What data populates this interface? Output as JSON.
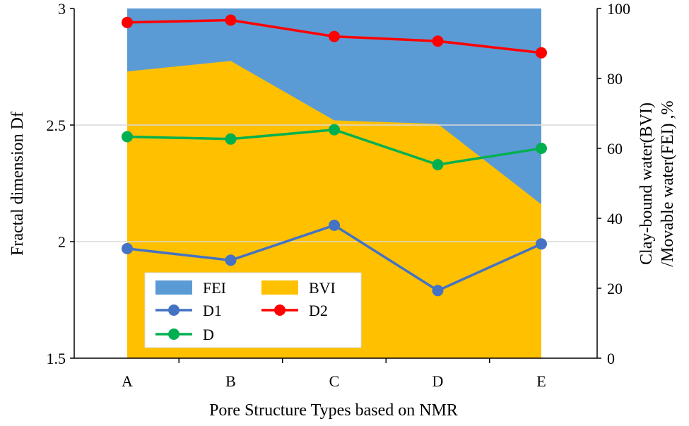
{
  "chart_data": {
    "type": "line",
    "categories": [
      "A",
      "B",
      "C",
      "D",
      "E"
    ],
    "xlabel": "Pore Structure Types based on NMR",
    "ylabel": "Fractal dimension Df",
    "ylabel_right_line1": "Clay-bound water(BVI)",
    "ylabel_right_line2": "/Movable water(FEI) ,%",
    "ylim": [
      1.5,
      3
    ],
    "y_ticks": [
      "1.5",
      "2",
      "2.5",
      "3"
    ],
    "y_tick_values": [
      1.5,
      2,
      2.5,
      3
    ],
    "ylim_right": [
      0,
      100
    ],
    "y_right_ticks": [
      "0",
      "20",
      "40",
      "60",
      "80",
      "100"
    ],
    "y_right_tick_values": [
      0,
      20,
      40,
      60,
      80,
      100
    ],
    "gridlines": [
      2,
      2.5
    ],
    "area_series": [
      {
        "name": "FEI",
        "color": "#5B9BD5",
        "values": [
          100,
          100,
          100,
          100,
          100
        ]
      },
      {
        "name": "BVI",
        "color": "#FFC000",
        "values": [
          82,
          85,
          68,
          67,
          44
        ]
      }
    ],
    "series": [
      {
        "name": "D1",
        "color": "#4472C4",
        "values": [
          1.97,
          1.92,
          2.07,
          1.79,
          1.99
        ]
      },
      {
        "name": "D2",
        "color": "#FF0000",
        "values": [
          2.94,
          2.95,
          2.88,
          2.86,
          2.81
        ]
      },
      {
        "name": "D",
        "color": "#00B050",
        "values": [
          2.45,
          2.44,
          2.48,
          2.33,
          2.4
        ]
      }
    ],
    "legend": {
      "fei": "FEI",
      "bvi": "BVI",
      "d1": "D1",
      "d2": "D2",
      "d": "D"
    }
  }
}
